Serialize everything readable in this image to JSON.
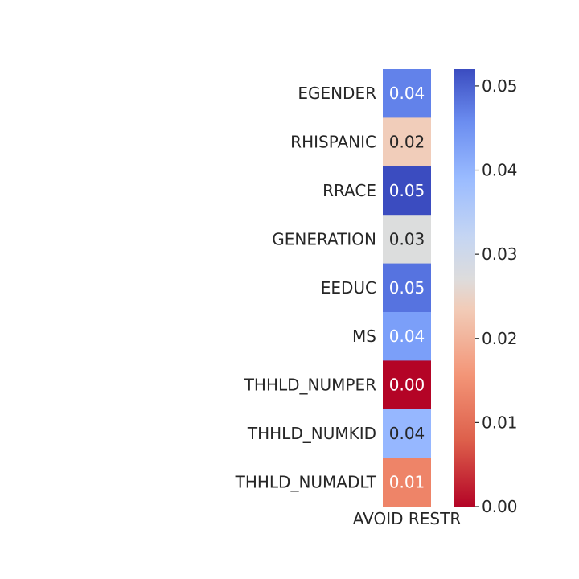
{
  "chart_data": {
    "type": "heatmap",
    "title": "",
    "rows": [
      "EGENDER",
      "RHISPANIC",
      "RRACE",
      "GENERATION",
      "EEDUC",
      "MS",
      "THHLD_NUMPER",
      "THHLD_NUMKID",
      "THHLD_NUMADLT"
    ],
    "columns": [
      "AVOID RESTR"
    ],
    "values": [
      [
        0.04
      ],
      [
        0.02
      ],
      [
        0.05
      ],
      [
        0.03
      ],
      [
        0.05
      ],
      [
        0.04
      ],
      [
        0.0
      ],
      [
        0.04
      ],
      [
        0.01
      ]
    ],
    "cell_colors": [
      "#6282ea",
      "#f1cdba",
      "#3b4cc0",
      "#dcdddd",
      "#5673e0",
      "#7b9ff9",
      "#b40426",
      "#96b7ff",
      "#ee8468"
    ],
    "cell_text_colors": [
      "#ffffff",
      "#262626",
      "#ffffff",
      "#262626",
      "#ffffff",
      "#ffffff",
      "#ffffff",
      "#262626",
      "#ffffff"
    ],
    "annotation_format": "2 decimals",
    "colormap": "coolwarm",
    "colorbar": {
      "range": [
        0.0,
        0.052
      ],
      "ticks": [
        0.0,
        0.01,
        0.02,
        0.03,
        0.04,
        0.05
      ],
      "tick_labels": [
        "0.00",
        "0.01",
        "0.02",
        "0.03",
        "0.04",
        "0.05"
      ]
    }
  }
}
